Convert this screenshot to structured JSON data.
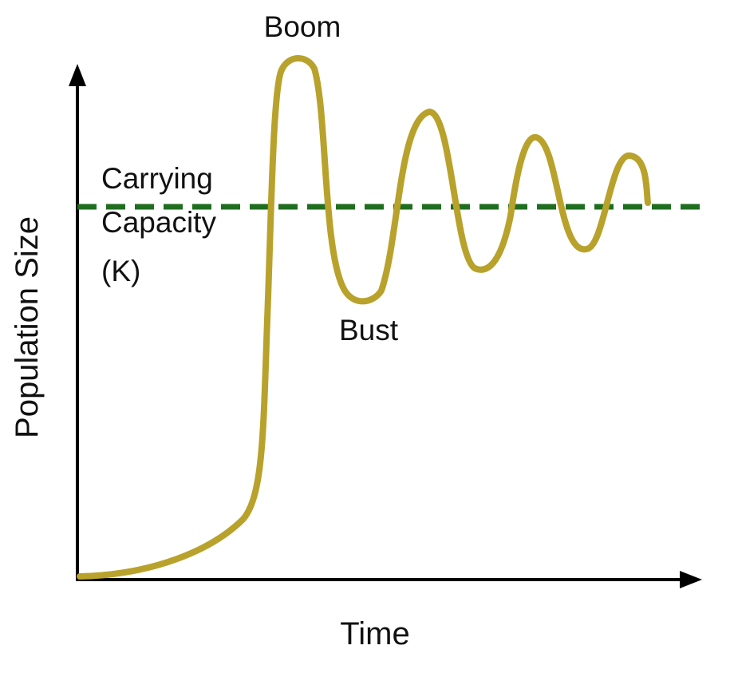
{
  "chart_data": {
    "type": "line",
    "title": "",
    "xlabel": "Time",
    "ylabel": "Population Size",
    "reference_line": {
      "label_lines": [
        "Carrying",
        "Capacity",
        "(K)"
      ],
      "color": "#1f6e1f",
      "style": "dashed"
    },
    "annotations": {
      "peak": "Boom",
      "trough": "Bust"
    },
    "series": [
      {
        "color": "#b8a22c"
      }
    ],
    "grid": false,
    "ticks": false,
    "legend": "none"
  }
}
